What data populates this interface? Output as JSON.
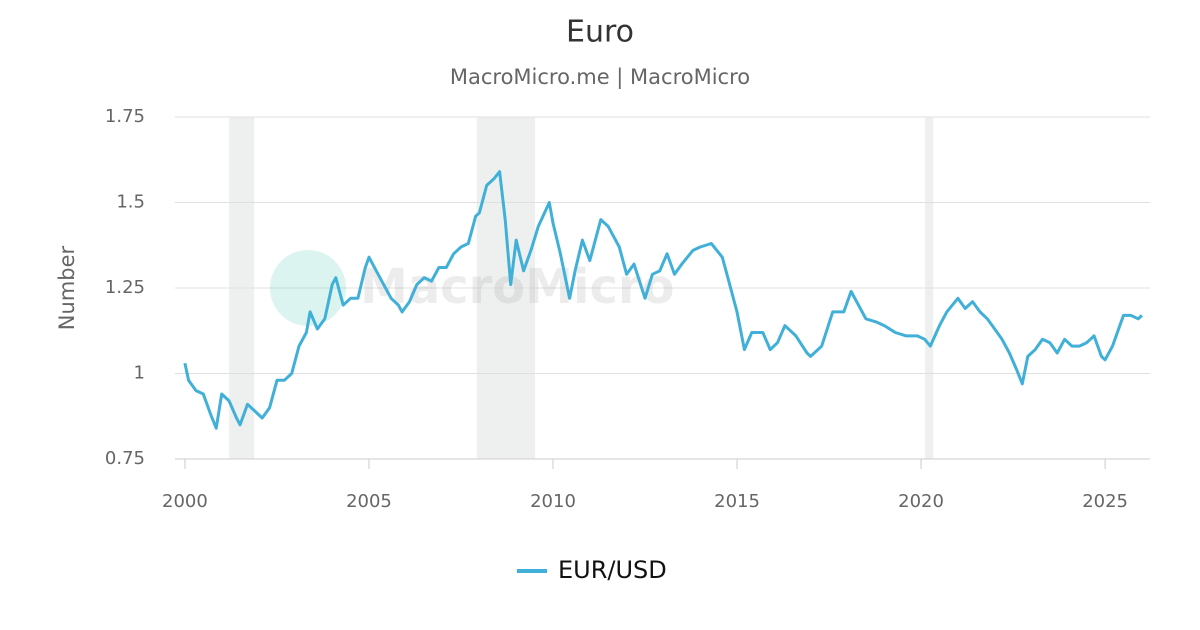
{
  "chart_data": {
    "type": "line",
    "title": "Euro",
    "subtitle": "MacroMicro.me | MacroMicro",
    "watermark": "MacroMicro",
    "y_label": "Number",
    "xlim": [
      1999.73,
      2026.22
    ],
    "xticks": [
      2000,
      2005,
      2010,
      2015,
      2020,
      2025
    ],
    "ylim": [
      0.75,
      1.75
    ],
    "yticks": [
      0.75,
      1,
      1.25,
      1.5,
      1.75
    ],
    "grid": true,
    "legend": "bottom",
    "shaded_ranges": [
      [
        2001.2,
        2001.88
      ],
      [
        2007.93,
        2009.51
      ],
      [
        2020.11,
        2020.33
      ]
    ],
    "x": [
      2000.0,
      2000.1,
      2000.3,
      2000.5,
      2000.7,
      2000.85,
      2001.0,
      2001.2,
      2001.4,
      2001.5,
      2001.7,
      2001.9,
      2002.1,
      2002.3,
      2002.5,
      2002.7,
      2002.9,
      2003.1,
      2003.3,
      2003.4,
      2003.6,
      2003.8,
      2004.0,
      2004.1,
      2004.3,
      2004.5,
      2004.7,
      2004.9,
      2005.0,
      2005.2,
      2005.4,
      2005.6,
      2005.8,
      2005.9,
      2006.1,
      2006.3,
      2006.5,
      2006.7,
      2006.9,
      2007.1,
      2007.3,
      2007.5,
      2007.7,
      2007.9,
      2008.0,
      2008.2,
      2008.4,
      2008.55,
      2008.7,
      2008.85,
      2009.0,
      2009.2,
      2009.4,
      2009.6,
      2009.9,
      2010.0,
      2010.2,
      2010.45,
      2010.6,
      2010.8,
      2011.0,
      2011.3,
      2011.5,
      2011.8,
      2012.0,
      2012.2,
      2012.5,
      2012.7,
      2012.9,
      2013.1,
      2013.3,
      2013.5,
      2013.8,
      2014.0,
      2014.3,
      2014.6,
      2014.8,
      2015.0,
      2015.2,
      2015.4,
      2015.7,
      2015.9,
      2016.1,
      2016.3,
      2016.6,
      2016.9,
      2017.0,
      2017.3,
      2017.6,
      2017.9,
      2018.1,
      2018.3,
      2018.5,
      2018.8,
      2019.0,
      2019.3,
      2019.6,
      2019.9,
      2020.1,
      2020.25,
      2020.5,
      2020.7,
      2021.0,
      2021.2,
      2021.4,
      2021.6,
      2021.8,
      2022.0,
      2022.2,
      2022.4,
      2022.6,
      2022.75,
      2022.9,
      2023.1,
      2023.3,
      2023.5,
      2023.7,
      2023.9,
      2024.1,
      2024.3,
      2024.5,
      2024.7,
      2024.9,
      2025.0,
      2025.2,
      2025.4,
      2025.5,
      2025.7,
      2025.9,
      2026.0
    ],
    "series": [
      {
        "name": "EUR/USD",
        "color": "#41b0d9",
        "values": [
          1.03,
          0.98,
          0.95,
          0.94,
          0.88,
          0.84,
          0.94,
          0.92,
          0.87,
          0.85,
          0.91,
          0.89,
          0.87,
          0.9,
          0.98,
          0.98,
          1.0,
          1.08,
          1.12,
          1.18,
          1.13,
          1.16,
          1.26,
          1.28,
          1.2,
          1.22,
          1.22,
          1.31,
          1.34,
          1.3,
          1.26,
          1.22,
          1.2,
          1.18,
          1.21,
          1.26,
          1.28,
          1.27,
          1.31,
          1.31,
          1.35,
          1.37,
          1.38,
          1.46,
          1.47,
          1.55,
          1.57,
          1.59,
          1.45,
          1.26,
          1.39,
          1.3,
          1.36,
          1.43,
          1.5,
          1.44,
          1.35,
          1.22,
          1.3,
          1.39,
          1.33,
          1.45,
          1.43,
          1.37,
          1.29,
          1.32,
          1.22,
          1.29,
          1.3,
          1.35,
          1.29,
          1.32,
          1.36,
          1.37,
          1.38,
          1.34,
          1.26,
          1.18,
          1.07,
          1.12,
          1.12,
          1.07,
          1.09,
          1.14,
          1.11,
          1.06,
          1.05,
          1.08,
          1.18,
          1.18,
          1.24,
          1.2,
          1.16,
          1.15,
          1.14,
          1.12,
          1.11,
          1.11,
          1.1,
          1.08,
          1.14,
          1.18,
          1.22,
          1.19,
          1.21,
          1.18,
          1.16,
          1.13,
          1.1,
          1.06,
          1.01,
          0.97,
          1.05,
          1.07,
          1.1,
          1.09,
          1.06,
          1.1,
          1.08,
          1.08,
          1.09,
          1.11,
          1.05,
          1.04,
          1.08,
          1.14,
          1.17,
          1.17,
          1.16,
          1.17
        ]
      }
    ]
  }
}
